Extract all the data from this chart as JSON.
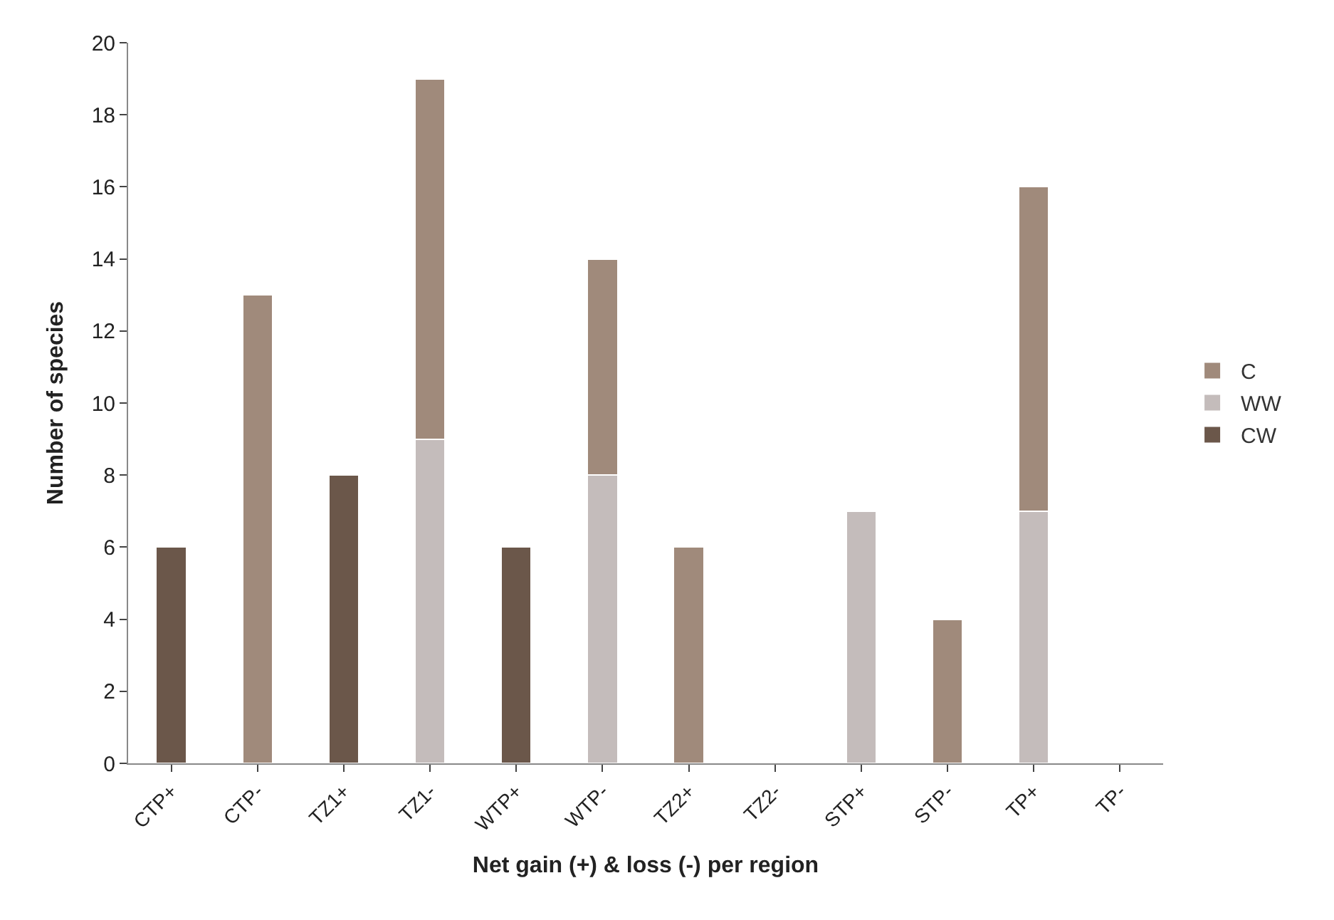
{
  "chart_data": {
    "type": "bar",
    "stacked": true,
    "xlabel": "Net gain (+) & loss (-) per region",
    "ylabel": "Number of species",
    "categories": [
      "CTP+",
      "CTP-",
      "TZ1+",
      "TZ1-",
      "WTP+",
      "WTP-",
      "TZ2+",
      "TZ2-",
      "STP+",
      "STP-",
      "TP+",
      "TP-"
    ],
    "series": [
      {
        "name": "CW",
        "color": "#6b574a",
        "values": [
          6,
          null,
          8,
          null,
          6,
          null,
          null,
          null,
          null,
          null,
          null,
          null
        ]
      },
      {
        "name": "WW",
        "color": "#c4bcbb",
        "values": [
          null,
          null,
          null,
          9,
          null,
          8,
          null,
          null,
          7,
          null,
          7,
          null
        ]
      },
      {
        "name": "C",
        "color": "#a08a7b",
        "values": [
          null,
          13,
          null,
          10,
          null,
          6,
          6,
          null,
          null,
          4,
          9,
          null
        ]
      }
    ],
    "ylim": [
      0,
      20
    ],
    "yticks": [
      0,
      2,
      4,
      6,
      8,
      10,
      12,
      14,
      16,
      18,
      20
    ],
    "legend": "right"
  }
}
